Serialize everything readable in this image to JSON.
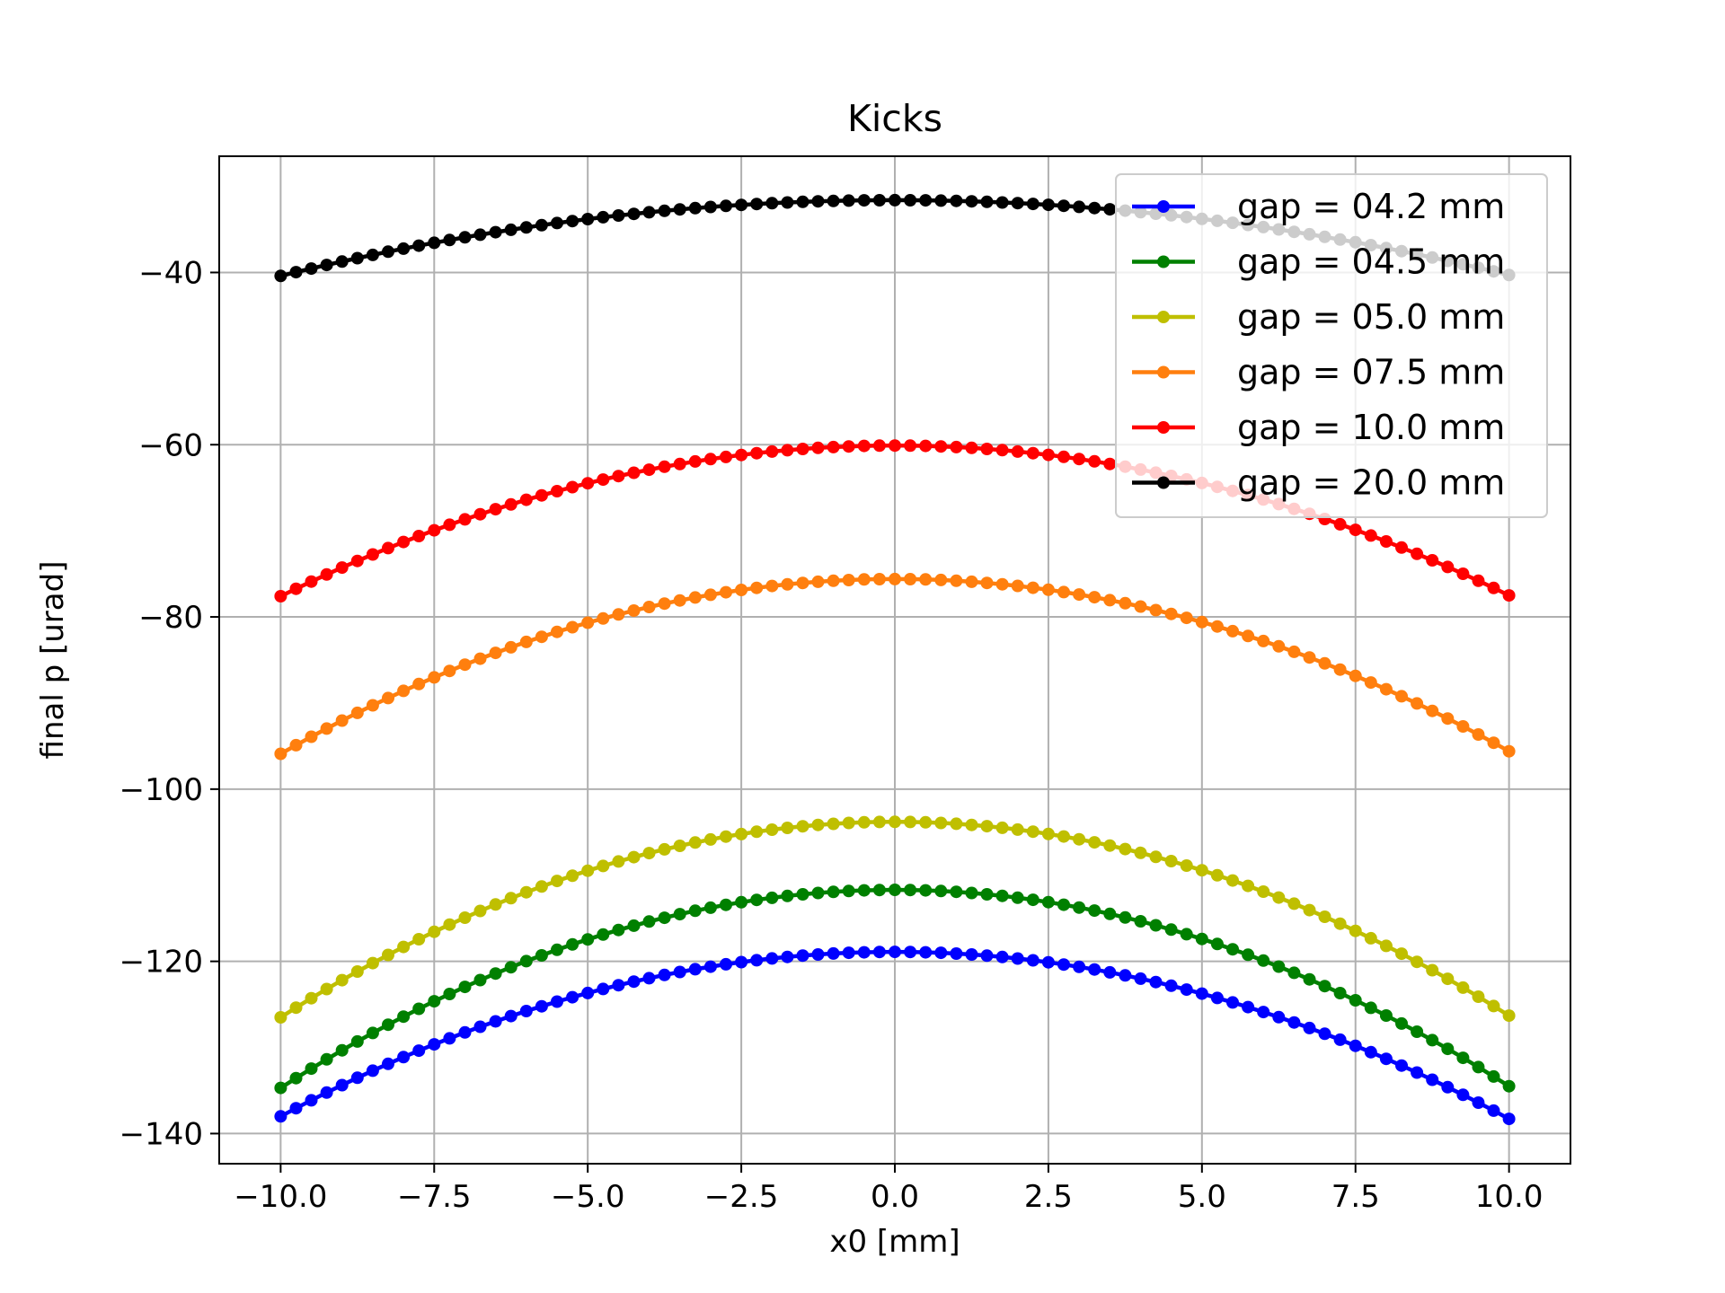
{
  "chart_data": {
    "type": "line",
    "title": "Kicks",
    "xlabel": "x0 [mm]",
    "ylabel": "final p [urad]",
    "xlim": [
      -11.0,
      11.0
    ],
    "ylim": [
      -143.5,
      -26.5
    ],
    "xticks": [
      -10.0,
      -7.5,
      -5.0,
      -2.5,
      0.0,
      2.5,
      5.0,
      7.5,
      10.0
    ],
    "xtick_labels": [
      "−10.0",
      "−7.5",
      "−5.0",
      "−2.5",
      "0.0",
      "2.5",
      "5.0",
      "7.5",
      "10.0"
    ],
    "yticks": [
      -140,
      -120,
      -100,
      -80,
      -60,
      -40
    ],
    "ytick_labels": [
      "−140",
      "−120",
      "−100",
      "−80",
      "−60",
      "−40"
    ],
    "grid": true,
    "legend_position": "top-right",
    "x": {
      "start": -10.0,
      "end": 10.0,
      "count": 81
    },
    "series": [
      {
        "name": "gap = 04.2 mm",
        "color": "#0000ff",
        "center": -118.9,
        "edge_left": -138.0,
        "edge_right": -138.3
      },
      {
        "name": "gap = 04.5 mm",
        "color": "#008000",
        "center": -111.7,
        "edge_left": -134.7,
        "edge_right": -134.5
      },
      {
        "name": "gap = 05.0 mm",
        "color": "#bfbf00",
        "center": -103.8,
        "edge_left": -126.5,
        "edge_right": -126.3
      },
      {
        "name": "gap = 07.5 mm",
        "color": "#ff7f0e",
        "center": -75.6,
        "edge_left": -95.9,
        "edge_right": -95.6
      },
      {
        "name": "gap = 10.0 mm",
        "color": "#ff0000",
        "center": -60.1,
        "edge_left": -77.6,
        "edge_right": -77.5
      },
      {
        "name": "gap = 20.0 mm",
        "color": "#000000",
        "center": -31.6,
        "edge_left": -40.4,
        "edge_right": -40.3
      }
    ]
  }
}
